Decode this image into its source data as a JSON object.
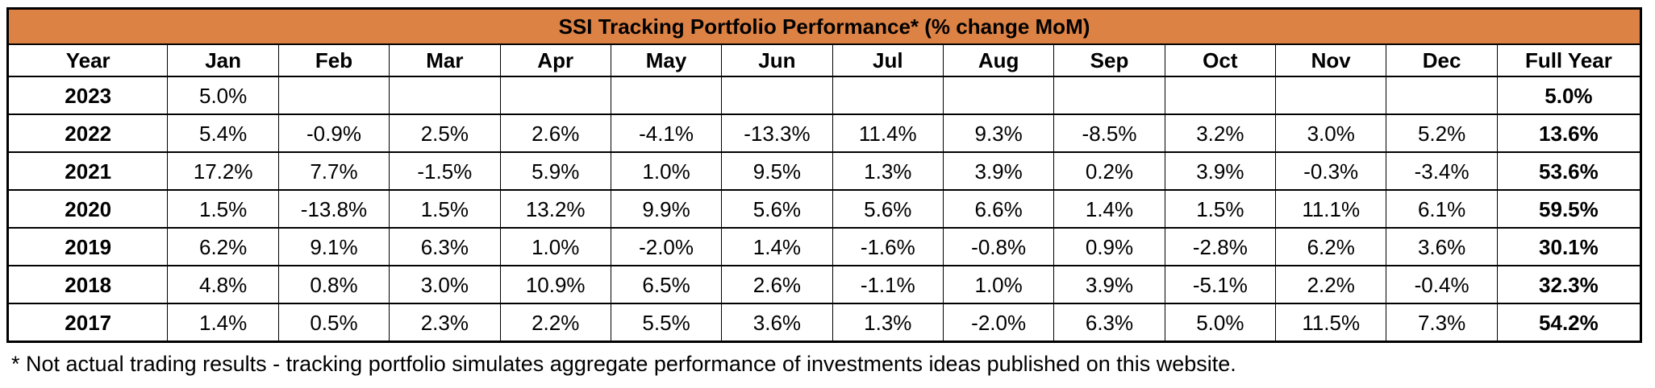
{
  "title": "SSI Tracking Portfolio Performance* (% change MoM)",
  "footnote": "* Not actual trading results - tracking portfolio simulates aggregate performance of investments ideas published on this website.",
  "colors": {
    "title_bg": "#DD8245",
    "border": "#000000",
    "text": "#000000",
    "background": "#FFFFFF"
  },
  "layout": {
    "year_col_width": "9.8%",
    "full_year_col_width": "8.8%"
  },
  "chart_data": {
    "type": "table",
    "title": "SSI Tracking Portfolio Performance* (% change MoM)",
    "columns": [
      "Year",
      "Jan",
      "Feb",
      "Mar",
      "Apr",
      "May",
      "Jun",
      "Jul",
      "Aug",
      "Sep",
      "Oct",
      "Nov",
      "Dec",
      "Full Year"
    ],
    "rows": [
      {
        "year": "2023",
        "values": [
          "5.0%",
          "",
          "",
          "",
          "",
          "",
          "",
          "",
          "",
          "",
          "",
          ""
        ],
        "full_year": "5.0%"
      },
      {
        "year": "2022",
        "values": [
          "5.4%",
          "-0.9%",
          "2.5%",
          "2.6%",
          "-4.1%",
          "-13.3%",
          "11.4%",
          "9.3%",
          "-8.5%",
          "3.2%",
          "3.0%",
          "5.2%"
        ],
        "full_year": "13.6%"
      },
      {
        "year": "2021",
        "values": [
          "17.2%",
          "7.7%",
          "-1.5%",
          "5.9%",
          "1.0%",
          "9.5%",
          "1.3%",
          "3.9%",
          "0.2%",
          "3.9%",
          "-0.3%",
          "-3.4%"
        ],
        "full_year": "53.6%"
      },
      {
        "year": "2020",
        "values": [
          "1.5%",
          "-13.8%",
          "1.5%",
          "13.2%",
          "9.9%",
          "5.6%",
          "5.6%",
          "6.6%",
          "1.4%",
          "1.5%",
          "11.1%",
          "6.1%"
        ],
        "full_year": "59.5%"
      },
      {
        "year": "2019",
        "values": [
          "6.2%",
          "9.1%",
          "6.3%",
          "1.0%",
          "-2.0%",
          "1.4%",
          "-1.6%",
          "-0.8%",
          "0.9%",
          "-2.8%",
          "6.2%",
          "3.6%"
        ],
        "full_year": "30.1%"
      },
      {
        "year": "2018",
        "values": [
          "4.8%",
          "0.8%",
          "3.0%",
          "10.9%",
          "6.5%",
          "2.6%",
          "-1.1%",
          "1.0%",
          "3.9%",
          "-5.1%",
          "2.2%",
          "-0.4%"
        ],
        "full_year": "32.3%"
      },
      {
        "year": "2017",
        "values": [
          "1.4%",
          "0.5%",
          "2.3%",
          "2.2%",
          "5.5%",
          "3.6%",
          "1.3%",
          "-2.0%",
          "6.3%",
          "5.0%",
          "11.5%",
          "7.3%"
        ],
        "full_year": "54.2%"
      }
    ]
  }
}
